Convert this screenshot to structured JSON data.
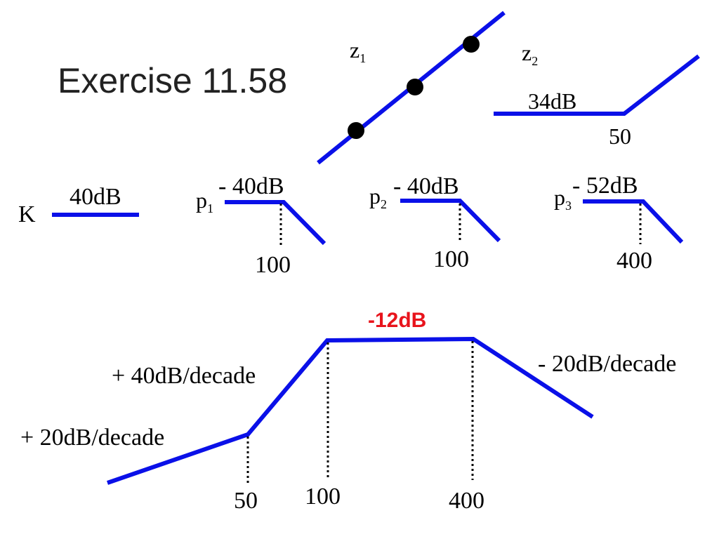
{
  "colors": {
    "asymptote": "#0a10e8",
    "highlight": "#e8141c",
    "marker": "#000000",
    "guide": "#000000"
  },
  "title": "Exercise 11.58",
  "zeros": {
    "z1": {
      "symbol": "z",
      "subscript": "1"
    },
    "z2": {
      "symbol": "z",
      "subscript": "2",
      "level": "34dB",
      "corner": "50"
    }
  },
  "gain": {
    "symbol": "K",
    "level": "40dB"
  },
  "poles": [
    {
      "symbol": "p",
      "subscript": "1",
      "level": "- 40dB",
      "corner": "100"
    },
    {
      "symbol": "p",
      "subscript": "2",
      "level": "- 40dB",
      "corner": "100"
    },
    {
      "symbol": "p",
      "subscript": "3",
      "level": "- 52dB",
      "corner": "400"
    }
  ],
  "composite": {
    "mid_level": "-12dB",
    "slopes": {
      "first": "+ 20dB/decade",
      "second": "+ 40dB/decade",
      "last": "- 20dB/decade"
    },
    "breakpoints": [
      "50",
      "100",
      "400"
    ]
  }
}
